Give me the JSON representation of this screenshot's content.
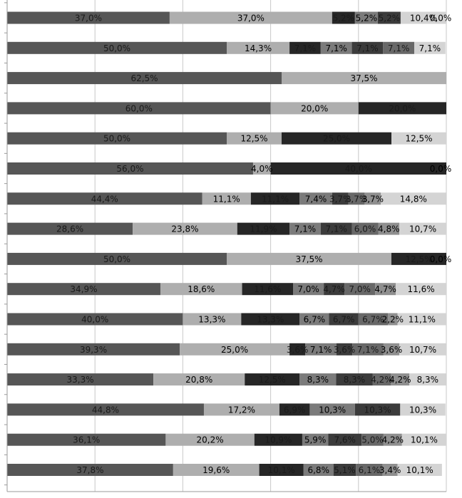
{
  "chart_data": {
    "type": "bar",
    "orientation": "horizontal",
    "stacked": "100%",
    "title": "",
    "xlabel": "",
    "ylabel": "",
    "xlim": [
      0,
      100
    ],
    "grid": true,
    "legend": "none",
    "segment_colors": [
      "#565656",
      "#aeaeae",
      "#262626",
      "#7b7b7b",
      "#3b3b3b",
      "#686868",
      "#8f8f8f",
      "#d4d4d4"
    ],
    "rows": [
      {
        "values": [
          37.0,
          37.0,
          5.2,
          5.2,
          5.2,
          0,
          0,
          10.4,
          0.0
        ],
        "labels": [
          "37,0%",
          "37,0%",
          "5,2%",
          "5,2%",
          "5,2%",
          "",
          "",
          "10,4%",
          "0,0%"
        ]
      },
      {
        "values": [
          50.0,
          14.3,
          7.1,
          7.1,
          7.1,
          7.1,
          0,
          7.1
        ],
        "labels": [
          "50,0%",
          "14,3%",
          "7,1%",
          "7,1%",
          "7,1%",
          "7,1%",
          "",
          "7,1%"
        ]
      },
      {
        "values": [
          62.5,
          37.5
        ],
        "labels": [
          "62,5%",
          "37,5%"
        ]
      },
      {
        "values": [
          60.0,
          20.0,
          20.0
        ],
        "labels": [
          "60,0%",
          "20,0%",
          "20,0%"
        ]
      },
      {
        "values": [
          50.0,
          12.5,
          25.0,
          0,
          0,
          0,
          0,
          12.5
        ],
        "labels": [
          "50,0%",
          "12,5%",
          "25,0%",
          "",
          "",
          "",
          "",
          "12,5%"
        ]
      },
      {
        "values": [
          56.0,
          4.0,
          40.0,
          0.0
        ],
        "labels": [
          "56,0%",
          "4,0%",
          "40,0%",
          "0,0%"
        ]
      },
      {
        "values": [
          44.4,
          11.1,
          11.1,
          7.4,
          3.7,
          3.7,
          3.7,
          14.8
        ],
        "labels": [
          "44,4%",
          "11,1%",
          "11,1%",
          "7,4%",
          "3,7%",
          "3,7%",
          "3,7%",
          "14,8%"
        ]
      },
      {
        "values": [
          28.6,
          23.8,
          11.9,
          7.1,
          7.1,
          6.0,
          4.8,
          10.7
        ],
        "labels": [
          "28,6%",
          "23,8%",
          "11,9%",
          "7,1%",
          "7,1%",
          "6,0%",
          "4,8%",
          "10,7%"
        ]
      },
      {
        "values": [
          50.0,
          37.5,
          12.5,
          0.0
        ],
        "labels": [
          "50,0%",
          "37,5%",
          "12,5%",
          "0,0%"
        ]
      },
      {
        "values": [
          34.9,
          18.6,
          11.6,
          7.0,
          4.7,
          7.0,
          4.7,
          11.6
        ],
        "labels": [
          "34,9%",
          "18,6%",
          "11,6%",
          "7,0%",
          "4,7%",
          "7,0%",
          "4,7%",
          "11,6%"
        ]
      },
      {
        "values": [
          40.0,
          13.3,
          13.3,
          6.7,
          6.7,
          6.7,
          2.2,
          11.1
        ],
        "labels": [
          "40,0%",
          "13,3%",
          "13,3%",
          "6,7%",
          "6,7%",
          "6,7%",
          "2,2%",
          "11,1%"
        ]
      },
      {
        "values": [
          39.3,
          25.0,
          3.6,
          7.1,
          3.6,
          7.1,
          3.6,
          10.7
        ],
        "labels": [
          "39,3%",
          "25,0%",
          "3,6%",
          "7,1%",
          "3,6%",
          "7,1%",
          "3,6%",
          "10,7%"
        ]
      },
      {
        "values": [
          33.3,
          20.8,
          12.5,
          8.3,
          8.3,
          4.2,
          4.2,
          8.3
        ],
        "labels": [
          "33,3%",
          "20,8%",
          "12,5%",
          "8,3%",
          "8,3%",
          "4,2%",
          "4,2%",
          "8,3%"
        ]
      },
      {
        "values": [
          44.8,
          17.2,
          6.9,
          10.3,
          10.3,
          0,
          0,
          10.3
        ],
        "labels": [
          "44,8%",
          "17,2%",
          "6,9%",
          "10,3%",
          "10,3%",
          "",
          "",
          "10,3%"
        ]
      },
      {
        "values": [
          36.1,
          20.2,
          10.9,
          5.9,
          7.6,
          5.0,
          4.2,
          10.1
        ],
        "labels": [
          "36,1%",
          "20,2%",
          "10,9%",
          "5,9%",
          "7,6%",
          "5,0%",
          "4,2%",
          "10,1%"
        ]
      },
      {
        "values": [
          37.8,
          19.6,
          10.1,
          6.8,
          5.1,
          6.1,
          3.4,
          10.1
        ],
        "labels": [
          "37,8%",
          "19,6%",
          "10,1%",
          "6,8%",
          "5,1%",
          "6,1%",
          "3,4%",
          "10,1%"
        ]
      }
    ]
  }
}
